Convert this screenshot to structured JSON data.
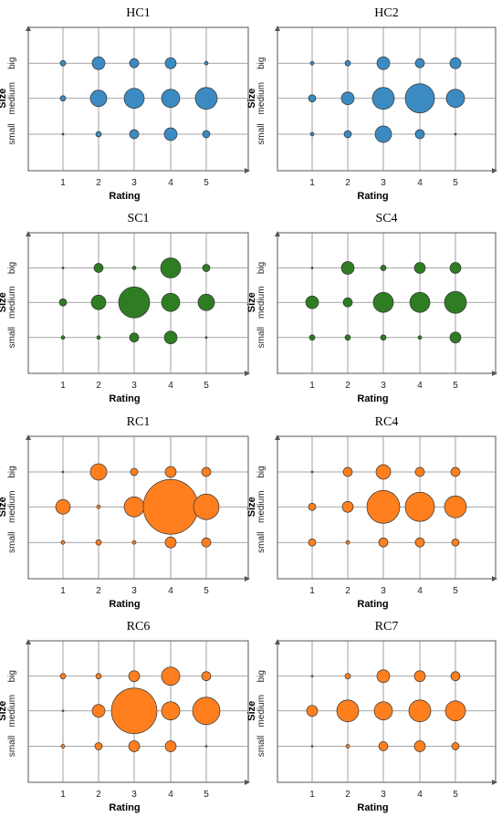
{
  "chart_data": [
    {
      "type": "scatter",
      "title": "HC1",
      "xlabel": "Rating",
      "ylabel": "Size",
      "x_ticks": [
        "1",
        "2",
        "3",
        "4",
        "5"
      ],
      "y_ticks": [
        "small",
        "medium",
        "big"
      ],
      "color": "#3b8bc2",
      "sizes": {
        "small": [
          1,
          3,
          5,
          7,
          4
        ],
        "medium": [
          3,
          9,
          11,
          10,
          12
        ],
        "big": [
          3,
          7,
          5,
          6,
          2
        ]
      }
    },
    {
      "type": "scatter",
      "title": "HC2",
      "xlabel": "Rating",
      "ylabel": "Size",
      "x_ticks": [
        "1",
        "2",
        "3",
        "4",
        "5"
      ],
      "y_ticks": [
        "small",
        "medium",
        "big"
      ],
      "color": "#3b8bc2",
      "sizes": {
        "small": [
          2,
          4,
          9,
          5,
          1
        ],
        "medium": [
          4,
          7,
          12,
          16,
          10
        ],
        "big": [
          2,
          3,
          7,
          5,
          6
        ]
      }
    },
    {
      "type": "scatter",
      "title": "SC1",
      "xlabel": "Rating",
      "ylabel": "Size",
      "x_ticks": [
        "1",
        "2",
        "3",
        "4",
        "5"
      ],
      "y_ticks": [
        "small",
        "medium",
        "big"
      ],
      "color": "#2e7d23",
      "sizes": {
        "small": [
          2,
          2,
          5,
          7,
          1
        ],
        "medium": [
          4,
          8,
          17,
          10,
          9
        ],
        "big": [
          1,
          5,
          2,
          11,
          4
        ]
      }
    },
    {
      "type": "scatter",
      "title": "SC4",
      "xlabel": "Rating",
      "ylabel": "Size",
      "x_ticks": [
        "1",
        "2",
        "3",
        "4",
        "5"
      ],
      "y_ticks": [
        "small",
        "medium",
        "big"
      ],
      "color": "#2e7d23",
      "sizes": {
        "small": [
          3,
          3,
          3,
          2,
          6
        ],
        "medium": [
          7,
          5,
          11,
          11,
          12
        ],
        "big": [
          1,
          7,
          3,
          6,
          6
        ]
      }
    },
    {
      "type": "scatter",
      "title": "RC1",
      "xlabel": "Rating",
      "ylabel": "Size",
      "x_ticks": [
        "1",
        "2",
        "3",
        "4",
        "5"
      ],
      "y_ticks": [
        "small",
        "medium",
        "big"
      ],
      "color": "#ff7f1e",
      "sizes": {
        "small": [
          2,
          3,
          2,
          6,
          5
        ],
        "medium": [
          8,
          2,
          11,
          30,
          14
        ],
        "big": [
          1,
          9,
          4,
          6,
          5
        ]
      }
    },
    {
      "type": "scatter",
      "title": "RC4",
      "xlabel": "Rating",
      "ylabel": "Size",
      "x_ticks": [
        "1",
        "2",
        "3",
        "4",
        "5"
      ],
      "y_ticks": [
        "small",
        "medium",
        "big"
      ],
      "color": "#ff7f1e",
      "sizes": {
        "small": [
          4,
          2,
          5,
          5,
          4
        ],
        "medium": [
          4,
          6,
          18,
          16,
          12
        ],
        "big": [
          1,
          5,
          8,
          5,
          5
        ]
      }
    },
    {
      "type": "scatter",
      "title": "RC6",
      "xlabel": "Rating",
      "ylabel": "Size",
      "x_ticks": [
        "1",
        "2",
        "3",
        "4",
        "5"
      ],
      "y_ticks": [
        "small",
        "medium",
        "big"
      ],
      "color": "#ff7f1e",
      "sizes": {
        "small": [
          2,
          4,
          6,
          6,
          1
        ],
        "medium": [
          1,
          7,
          25,
          10,
          15
        ],
        "big": [
          3,
          3,
          6,
          10,
          5
        ]
      }
    },
    {
      "type": "scatter",
      "title": "RC7",
      "xlabel": "Rating",
      "ylabel": "Size",
      "x_ticks": [
        "1",
        "2",
        "3",
        "4",
        "5"
      ],
      "y_ticks": [
        "small",
        "medium",
        "big"
      ],
      "color": "#ff7f1e",
      "sizes": {
        "small": [
          1,
          2,
          5,
          6,
          4
        ],
        "medium": [
          6,
          12,
          10,
          12,
          11
        ],
        "big": [
          1,
          3,
          7,
          6,
          5
        ]
      }
    }
  ]
}
